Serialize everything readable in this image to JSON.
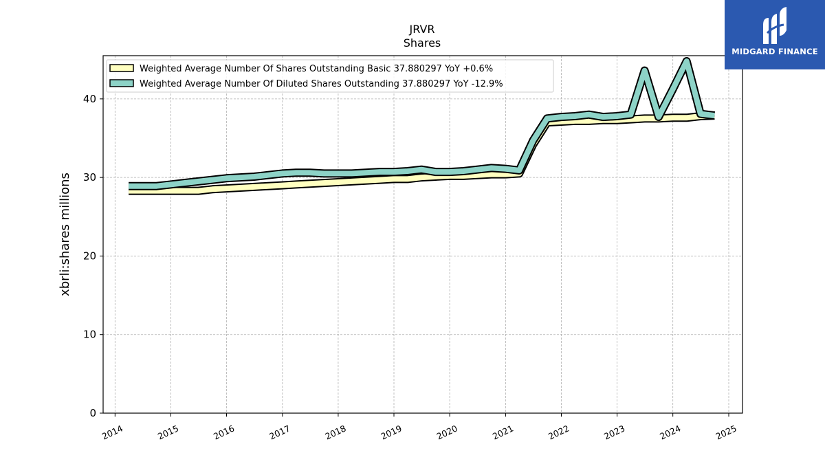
{
  "brand": {
    "name": "MIDGARD FINANCE",
    "color": "#2b59b0"
  },
  "chart_data": {
    "type": "line",
    "title": "JRVR",
    "subtitle": "Shares",
    "xlabel": "",
    "ylabel": "xbrli:shares millions",
    "xlim": [
      "2013-10-15",
      "2025-04-01"
    ],
    "ylim": [
      0,
      45.5
    ],
    "x_ticks": [
      "2014",
      "2015",
      "2016",
      "2017",
      "2018",
      "2019",
      "2020",
      "2021",
      "2022",
      "2023",
      "2024",
      "2025"
    ],
    "y_ticks": [
      0,
      10,
      20,
      30,
      40
    ],
    "grid": true,
    "legend_position": "top-left",
    "series": [
      {
        "name": "Weighted Average Number Of Shares Outstanding Basic  37.880297 YoY +0.6%",
        "color": "#ffffc0",
        "points": [
          [
            "2014-03-31",
            28.3
          ],
          [
            "2014-06-30",
            28.3
          ],
          [
            "2014-09-30",
            28.3
          ],
          [
            "2014-12-31",
            28.3
          ],
          [
            "2015-03-31",
            28.3
          ],
          [
            "2015-06-30",
            28.3
          ],
          [
            "2015-09-30",
            28.5
          ],
          [
            "2015-12-31",
            28.6
          ],
          [
            "2016-03-31",
            28.7
          ],
          [
            "2016-06-30",
            28.8
          ],
          [
            "2016-09-30",
            28.9
          ],
          [
            "2016-12-31",
            29.0
          ],
          [
            "2017-03-31",
            29.1
          ],
          [
            "2017-06-30",
            29.2
          ],
          [
            "2017-09-30",
            29.3
          ],
          [
            "2017-12-31",
            29.4
          ],
          [
            "2018-03-31",
            29.5
          ],
          [
            "2018-06-30",
            29.6
          ],
          [
            "2018-09-30",
            29.7
          ],
          [
            "2018-12-31",
            29.8
          ],
          [
            "2019-03-31",
            29.8
          ],
          [
            "2019-06-30",
            30.0
          ],
          [
            "2019-09-30",
            30.1
          ],
          [
            "2019-12-31",
            30.2
          ],
          [
            "2020-03-31",
            30.2
          ],
          [
            "2020-06-30",
            30.3
          ],
          [
            "2020-09-30",
            30.4
          ],
          [
            "2020-12-31",
            30.4
          ],
          [
            "2021-03-31",
            30.5
          ],
          [
            "2021-06-30",
            34.2
          ],
          [
            "2021-09-30",
            37.0
          ],
          [
            "2021-12-31",
            37.1
          ],
          [
            "2022-03-31",
            37.2
          ],
          [
            "2022-06-30",
            37.2
          ],
          [
            "2022-09-30",
            37.3
          ],
          [
            "2022-12-31",
            37.3
          ],
          [
            "2023-03-31",
            37.4
          ],
          [
            "2023-06-30",
            37.5
          ],
          [
            "2023-09-30",
            37.5
          ],
          [
            "2023-12-31",
            37.6
          ],
          [
            "2024-03-31",
            37.6
          ],
          [
            "2024-06-30",
            37.8
          ],
          [
            "2024-09-30",
            37.88
          ]
        ]
      },
      {
        "name": "Weighted Average Number Of Diluted Shares Outstanding  37.880297 YoY -12.9%",
        "color": "#8dd3c7",
        "points": [
          [
            "2014-03-31",
            28.9
          ],
          [
            "2014-06-30",
            28.9
          ],
          [
            "2014-09-30",
            28.9
          ],
          [
            "2014-12-31",
            29.1
          ],
          [
            "2015-03-31",
            29.3
          ],
          [
            "2015-06-30",
            29.5
          ],
          [
            "2015-09-30",
            29.7
          ],
          [
            "2015-12-31",
            29.9
          ],
          [
            "2016-03-31",
            30.0
          ],
          [
            "2016-06-30",
            30.1
          ],
          [
            "2016-09-30",
            30.3
          ],
          [
            "2016-12-31",
            30.5
          ],
          [
            "2017-03-31",
            30.6
          ],
          [
            "2017-06-30",
            30.6
          ],
          [
            "2017-09-30",
            30.5
          ],
          [
            "2017-12-31",
            30.5
          ],
          [
            "2018-03-31",
            30.5
          ],
          [
            "2018-06-30",
            30.6
          ],
          [
            "2018-09-30",
            30.7
          ],
          [
            "2018-12-31",
            30.7
          ],
          [
            "2019-03-31",
            30.8
          ],
          [
            "2019-06-30",
            31.0
          ],
          [
            "2019-09-30",
            30.7
          ],
          [
            "2019-12-31",
            30.7
          ],
          [
            "2020-03-31",
            30.8
          ],
          [
            "2020-06-30",
            31.0
          ],
          [
            "2020-09-30",
            31.2
          ],
          [
            "2020-12-31",
            31.1
          ],
          [
            "2021-03-31",
            30.9
          ],
          [
            "2021-06-30",
            34.7
          ],
          [
            "2021-09-30",
            37.5
          ],
          [
            "2021-12-31",
            37.7
          ],
          [
            "2022-03-31",
            37.8
          ],
          [
            "2022-06-30",
            38.0
          ],
          [
            "2022-09-30",
            37.7
          ],
          [
            "2022-12-31",
            37.8
          ],
          [
            "2023-03-31",
            38.0
          ],
          [
            "2023-06-30",
            43.6
          ],
          [
            "2023-09-30",
            37.7
          ],
          [
            "2023-12-31",
            41.2
          ],
          [
            "2024-03-31",
            44.8
          ],
          [
            "2024-06-30",
            38.1
          ],
          [
            "2024-09-30",
            37.88
          ]
        ]
      }
    ]
  }
}
